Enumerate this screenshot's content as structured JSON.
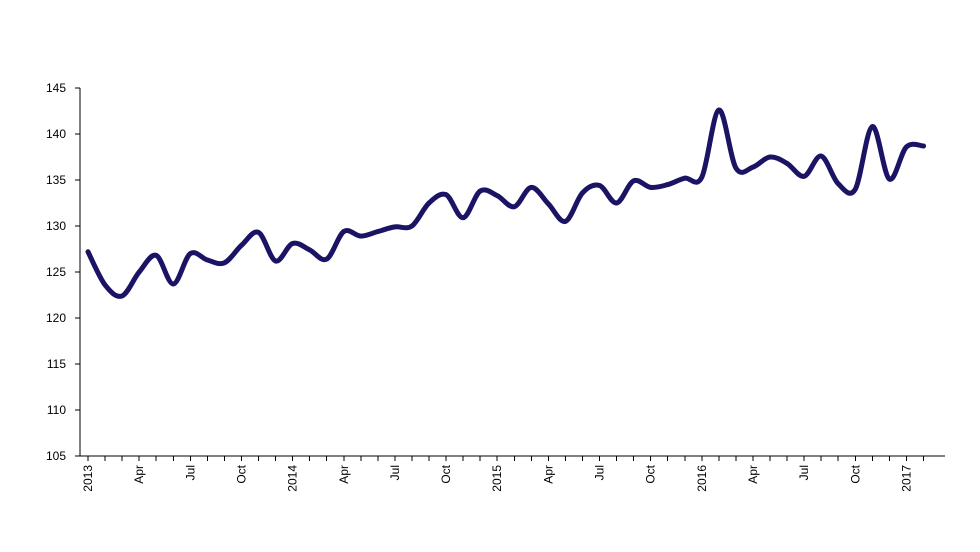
{
  "chart_data": {
    "type": "line",
    "title": "",
    "xlabel": "",
    "ylabel": "",
    "ylim": [
      105,
      145
    ],
    "y_ticks": [
      "105",
      "110",
      "115",
      "120",
      "125",
      "130",
      "135",
      "140",
      "145"
    ],
    "x_tick_labels": [
      "2013",
      "Apr",
      "Jul",
      "Oct",
      "2014",
      "Apr",
      "Jul",
      "Oct",
      "2015",
      "Apr",
      "Jul",
      "Oct",
      "2016",
      "Apr",
      "Jul",
      "Oct",
      "2017"
    ],
    "grid": false,
    "legend": "none",
    "line_color": "#1b1464",
    "series": [
      {
        "x": [
          "2013-01",
          "2013-02",
          "2013-03",
          "2013-04",
          "2013-05",
          "2013-06",
          "2013-07",
          "2013-08",
          "2013-09",
          "2013-10",
          "2013-11",
          "2013-12",
          "2014-01",
          "2014-02",
          "2014-03",
          "2014-04",
          "2014-05",
          "2014-06",
          "2014-07",
          "2014-08",
          "2014-09",
          "2014-10",
          "2014-11",
          "2014-12",
          "2015-01",
          "2015-02",
          "2015-03",
          "2015-04",
          "2015-05",
          "2015-06",
          "2015-07",
          "2015-08",
          "2015-09",
          "2015-10",
          "2015-11",
          "2015-12",
          "2016-01",
          "2016-02",
          "2016-03",
          "2016-04",
          "2016-05",
          "2016-06",
          "2016-07",
          "2016-08",
          "2016-09",
          "2016-10",
          "2016-11",
          "2016-12",
          "2017-01",
          "2017-02"
        ],
        "values": [
          127.2,
          123.6,
          122.4,
          125.0,
          126.8,
          123.7,
          127.0,
          126.3,
          126.0,
          127.9,
          129.3,
          126.2,
          128.1,
          127.4,
          126.4,
          129.4,
          128.9,
          129.4,
          129.9,
          130.0,
          132.5,
          133.4,
          130.9,
          133.8,
          133.3,
          132.1,
          134.2,
          132.4,
          130.5,
          133.6,
          134.4,
          132.5,
          134.9,
          134.2,
          134.5,
          135.2,
          135.3,
          142.6,
          136.3,
          136.4,
          137.5,
          136.8,
          135.4,
          137.6,
          134.6,
          134.0,
          140.8,
          135.1,
          138.6,
          138.7
        ]
      }
    ]
  }
}
